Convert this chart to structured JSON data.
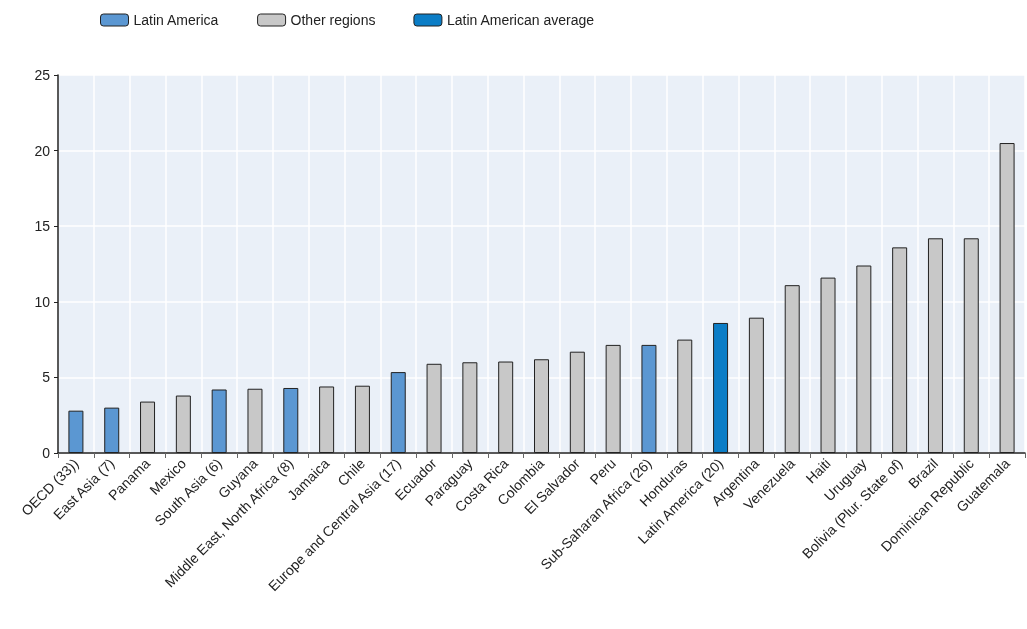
{
  "chart_data": {
    "type": "bar",
    "categories": [
      "OECD (33))",
      "East Asia (7)",
      "Panama",
      "Mexico",
      "South Asia (6)",
      "Guyana",
      "Middle East, North Africa (8)",
      "Jamaica",
      "Chile",
      "Europe and Central Asia (17)",
      "Ecuador",
      "Paraguay",
      "Costa Rica",
      "Colombia",
      "El Salvador",
      "Peru",
      "Sub-Saharan Africa (26)",
      "Honduras",
      "Latin America (20)",
      "Argentina",
      "Venezuela",
      "Haiti",
      "Uruguay",
      "Bolivia (Plur. State of)",
      "Brazil",
      "Dominican Republic",
      "Guatemala"
    ],
    "series": [
      {
        "name": "Latin America",
        "color": "#5b97d2",
        "values": [
          2.8,
          3.0,
          null,
          null,
          4.2,
          null,
          4.3,
          null,
          null,
          5.35,
          null,
          null,
          null,
          null,
          null,
          null,
          7.15,
          null,
          null,
          null,
          null,
          null,
          null,
          null,
          null,
          null,
          null
        ]
      },
      {
        "name": "Other regions",
        "color": "#c8c8c8",
        "values": [
          null,
          null,
          3.4,
          3.8,
          null,
          4.25,
          null,
          4.4,
          4.45,
          null,
          5.9,
          6.0,
          6.05,
          6.2,
          6.7,
          7.15,
          null,
          7.5,
          null,
          8.95,
          11.1,
          11.6,
          12.4,
          13.6,
          14.2,
          14.2,
          20.5
        ]
      },
      {
        "name": "Latin American average",
        "color": "#0b7dc6",
        "values": [
          null,
          null,
          null,
          null,
          null,
          null,
          null,
          null,
          null,
          null,
          null,
          null,
          null,
          null,
          null,
          null,
          null,
          null,
          8.6,
          null,
          null,
          null,
          null,
          null,
          null,
          null,
          null
        ]
      }
    ],
    "ylim": [
      0,
      25
    ],
    "yticks": [
      0,
      5,
      10,
      15,
      20,
      25
    ],
    "grid": true,
    "legend": "top left"
  }
}
